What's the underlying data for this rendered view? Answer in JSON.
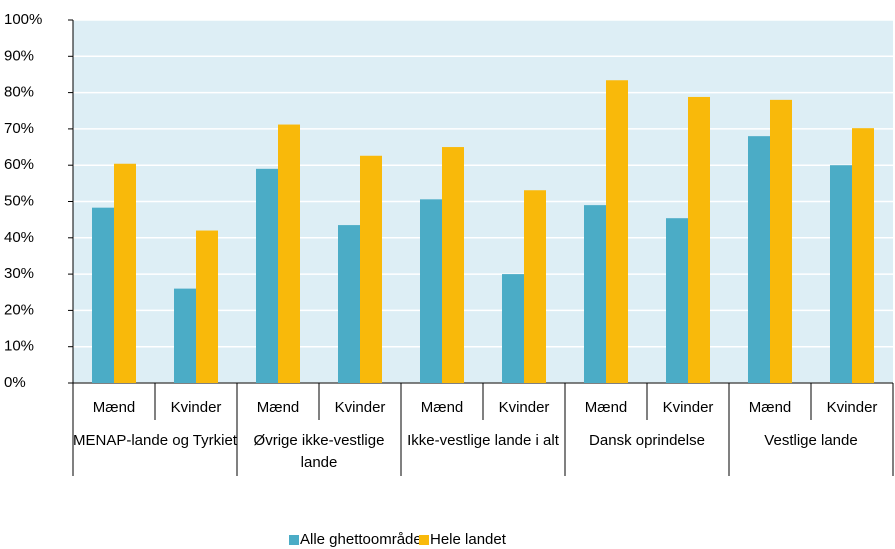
{
  "chart_data": {
    "type": "bar",
    "groups": [
      "MENAP-lande og Tyrkiet",
      "Øvrige ikke-vestlige lande",
      "Ikke-vestlige lande i alt",
      "Dansk oprindelse",
      "Vestlige lande"
    ],
    "categories": [
      "Mænd",
      "Kvinder",
      "Mænd",
      "Kvinder",
      "Mænd",
      "Kvinder",
      "Mænd",
      "Kvinder",
      "Mænd",
      "Kvinder"
    ],
    "series": [
      {
        "name": "Alle ghettoområder",
        "color": "#4bacc6",
        "values": [
          48.3,
          26,
          59,
          43.5,
          50.6,
          30,
          49,
          45.4,
          68,
          60
        ]
      },
      {
        "name": "Hele landet",
        "color": "#f9b90a",
        "values": [
          60.4,
          42,
          71.2,
          62.6,
          65,
          53.1,
          83.4,
          78.8,
          78,
          70.2
        ]
      }
    ],
    "ylim": [
      0,
      100
    ],
    "yticks": [
      {
        "value": 0,
        "label": "0%"
      },
      {
        "value": 10,
        "label": "10%"
      },
      {
        "value": 20,
        "label": "20%"
      },
      {
        "value": 30,
        "label": "30%"
      },
      {
        "value": 40,
        "label": "40%"
      },
      {
        "value": 50,
        "label": "50%"
      },
      {
        "value": 60,
        "label": "60%"
      },
      {
        "value": 70,
        "label": "70%"
      },
      {
        "value": 80,
        "label": "80%"
      },
      {
        "value": 90,
        "label": "90%"
      },
      {
        "value": 100,
        "label": "100%"
      }
    ],
    "grid": true,
    "legend": "bottom"
  }
}
